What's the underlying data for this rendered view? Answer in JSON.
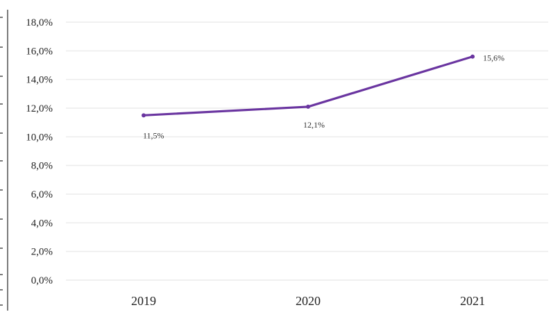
{
  "chart_data": {
    "type": "line",
    "categories": [
      "2019",
      "2020",
      "2021"
    ],
    "series": [
      {
        "values": [
          11.5,
          12.1,
          15.6
        ],
        "labels": [
          "11,5%",
          "12,1%",
          "15,6%"
        ],
        "color": "#6a35a0"
      }
    ],
    "y_ticks": [
      "0,0%",
      "2,0%",
      "4,0%",
      "6,0%",
      "8,0%",
      "10,0%",
      "12,0%",
      "14,0%",
      "16,0%",
      "18,0%"
    ],
    "ylim": [
      0,
      18
    ],
    "grid": true,
    "gridline_color": "#ececec"
  }
}
